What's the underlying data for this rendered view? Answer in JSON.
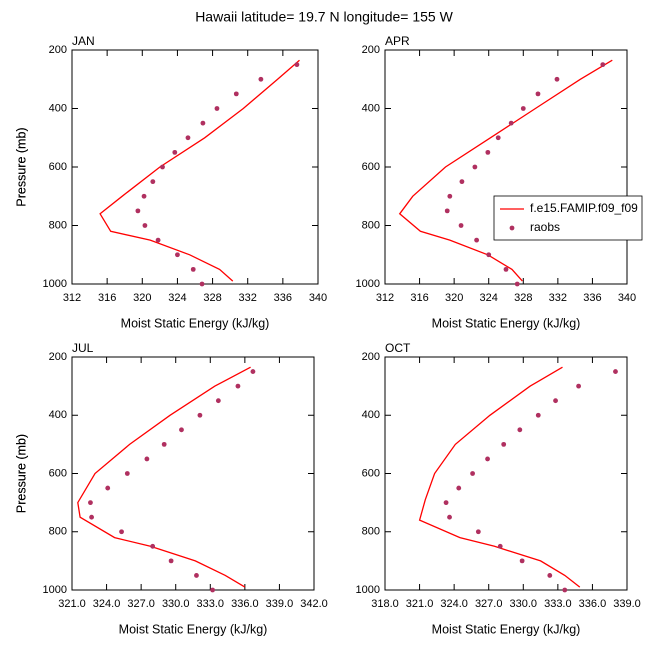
{
  "title": "Hawaii  latitude= 19.7 N longitude= 155 W",
  "chart_data": [
    {
      "type": "line",
      "label": "JAN",
      "xlabel": "Moist Static Energy (kJ/kg)",
      "ylabel": "Pressure (mb)",
      "xlim": [
        312,
        340
      ],
      "xticks": [
        312,
        316,
        320,
        324,
        328,
        332,
        336,
        340
      ],
      "ylim": [
        1000,
        200
      ],
      "yticks": [
        200,
        400,
        600,
        800,
        1000
      ],
      "series": [
        {
          "type": "line",
          "color": "#ff0000",
          "x": [
            337.9,
            335.4,
            331.5,
            327.1,
            322.0,
            317.7,
            315.2,
            316.4,
            320.9,
            325.4,
            328.8,
            330.3
          ],
          "values": [
            235,
            300,
            400,
            500,
            600,
            700,
            760,
            820,
            850,
            900,
            950,
            990
          ]
        },
        {
          "type": "scatter",
          "color": "#b03060",
          "x": [
            337.6,
            333.5,
            330.7,
            328.5,
            326.9,
            325.2,
            323.7,
            322.3,
            321.2,
            320.2,
            319.5,
            320.3,
            321.8,
            324.0,
            325.8,
            326.8
          ],
          "values": [
            250,
            300,
            350,
            400,
            450,
            500,
            550,
            600,
            650,
            700,
            750,
            800,
            850,
            900,
            950,
            1000
          ]
        }
      ]
    },
    {
      "type": "line",
      "label": "APR",
      "xlabel": "Moist Static Energy (kJ/kg)",
      "ylabel": "Pressure (mb)",
      "xlim": [
        312,
        340
      ],
      "xticks": [
        312,
        316,
        320,
        324,
        328,
        332,
        336,
        340
      ],
      "ylim": [
        1000,
        200
      ],
      "yticks": [
        200,
        400,
        600,
        800,
        1000
      ],
      "legend": "right",
      "series": [
        {
          "type": "line",
          "name": "f.e15.FAMIP.f09_f09",
          "color": "#ff0000",
          "x": [
            338.3,
            334.6,
            329.4,
            324.2,
            319.0,
            315.2,
            313.7,
            316.1,
            319.5,
            323.9,
            326.7,
            327.9
          ],
          "values": [
            235,
            300,
            400,
            500,
            600,
            700,
            760,
            820,
            850,
            900,
            950,
            990
          ]
        },
        {
          "type": "scatter",
          "name": "raobs",
          "color": "#b03060",
          "x": [
            337.2,
            331.9,
            329.7,
            328.0,
            326.6,
            325.1,
            323.9,
            322.4,
            320.9,
            319.5,
            319.2,
            320.8,
            322.6,
            324.0,
            326.0,
            327.3
          ],
          "values": [
            250,
            300,
            350,
            400,
            450,
            500,
            550,
            600,
            650,
            700,
            750,
            800,
            850,
            900,
            950,
            1000
          ]
        }
      ]
    },
    {
      "type": "line",
      "label": "JUL",
      "xlabel": "Moist Static Energy (kJ/kg)",
      "ylabel": "Pressure (mb)",
      "xlim": [
        321,
        342
      ],
      "xticks": [
        {
          "value": 321,
          "label": "321.0"
        },
        {
          "value": 324,
          "label": "324.0"
        },
        {
          "value": 327,
          "label": "327.0"
        },
        {
          "value": 330,
          "label": "330.0"
        },
        {
          "value": 333,
          "label": "333.0"
        },
        {
          "value": 336,
          "label": "336.0"
        },
        {
          "value": 339,
          "label": "339.0"
        },
        {
          "value": 342,
          "label": "342.0"
        }
      ],
      "ylim": [
        1000,
        200
      ],
      "yticks": [
        200,
        400,
        600,
        800,
        1000
      ],
      "series": [
        {
          "type": "line",
          "color": "#ff0000",
          "x": [
            336.5,
            333.4,
            329.5,
            326.0,
            323.0,
            321.5,
            321.7,
            324.7,
            327.8,
            331.7,
            334.3,
            336.0
          ],
          "values": [
            235,
            300,
            400,
            500,
            600,
            700,
            750,
            820,
            850,
            900,
            950,
            990
          ]
        },
        {
          "type": "scatter",
          "color": "#b03060",
          "x": [
            336.7,
            335.4,
            333.7,
            332.1,
            330.5,
            329.0,
            327.5,
            325.8,
            324.1,
            322.6,
            322.7,
            325.3,
            328.0,
            329.6,
            331.8,
            333.2
          ],
          "values": [
            250,
            300,
            350,
            400,
            450,
            500,
            550,
            600,
            650,
            700,
            750,
            800,
            850,
            900,
            950,
            1000
          ]
        }
      ]
    },
    {
      "type": "line",
      "label": "OCT",
      "xlabel": "Moist Static Energy (kJ/kg)",
      "ylabel": "Pressure (mb)",
      "xlim": [
        318,
        339
      ],
      "xticks": [
        {
          "value": 318,
          "label": "318.0"
        },
        {
          "value": 321,
          "label": "321.0"
        },
        {
          "value": 324,
          "label": "324.0"
        },
        {
          "value": 327,
          "label": "327.0"
        },
        {
          "value": 330,
          "label": "330.0"
        },
        {
          "value": 333,
          "label": "333.0"
        },
        {
          "value": 336,
          "label": "336.0"
        },
        {
          "value": 339,
          "label": "339.0"
        }
      ],
      "ylim": [
        1000,
        200
      ],
      "yticks": [
        200,
        400,
        600,
        800,
        1000
      ],
      "series": [
        {
          "type": "line",
          "color": "#ff0000",
          "x": [
            333.4,
            330.6,
            327.1,
            324.1,
            322.3,
            321.5,
            321.0,
            324.5,
            327.5,
            331.5,
            333.6,
            334.9
          ],
          "values": [
            235,
            300,
            400,
            500,
            600,
            690,
            760,
            820,
            850,
            900,
            950,
            990
          ]
        },
        {
          "type": "scatter",
          "color": "#b03060",
          "x": [
            338.0,
            334.8,
            332.8,
            331.3,
            329.7,
            328.3,
            326.9,
            325.6,
            324.4,
            323.3,
            323.6,
            326.1,
            328.0,
            329.9,
            332.3,
            333.6
          ],
          "values": [
            250,
            300,
            350,
            400,
            450,
            500,
            550,
            600,
            650,
            700,
            750,
            800,
            850,
            900,
            950,
            1000
          ]
        }
      ]
    }
  ]
}
